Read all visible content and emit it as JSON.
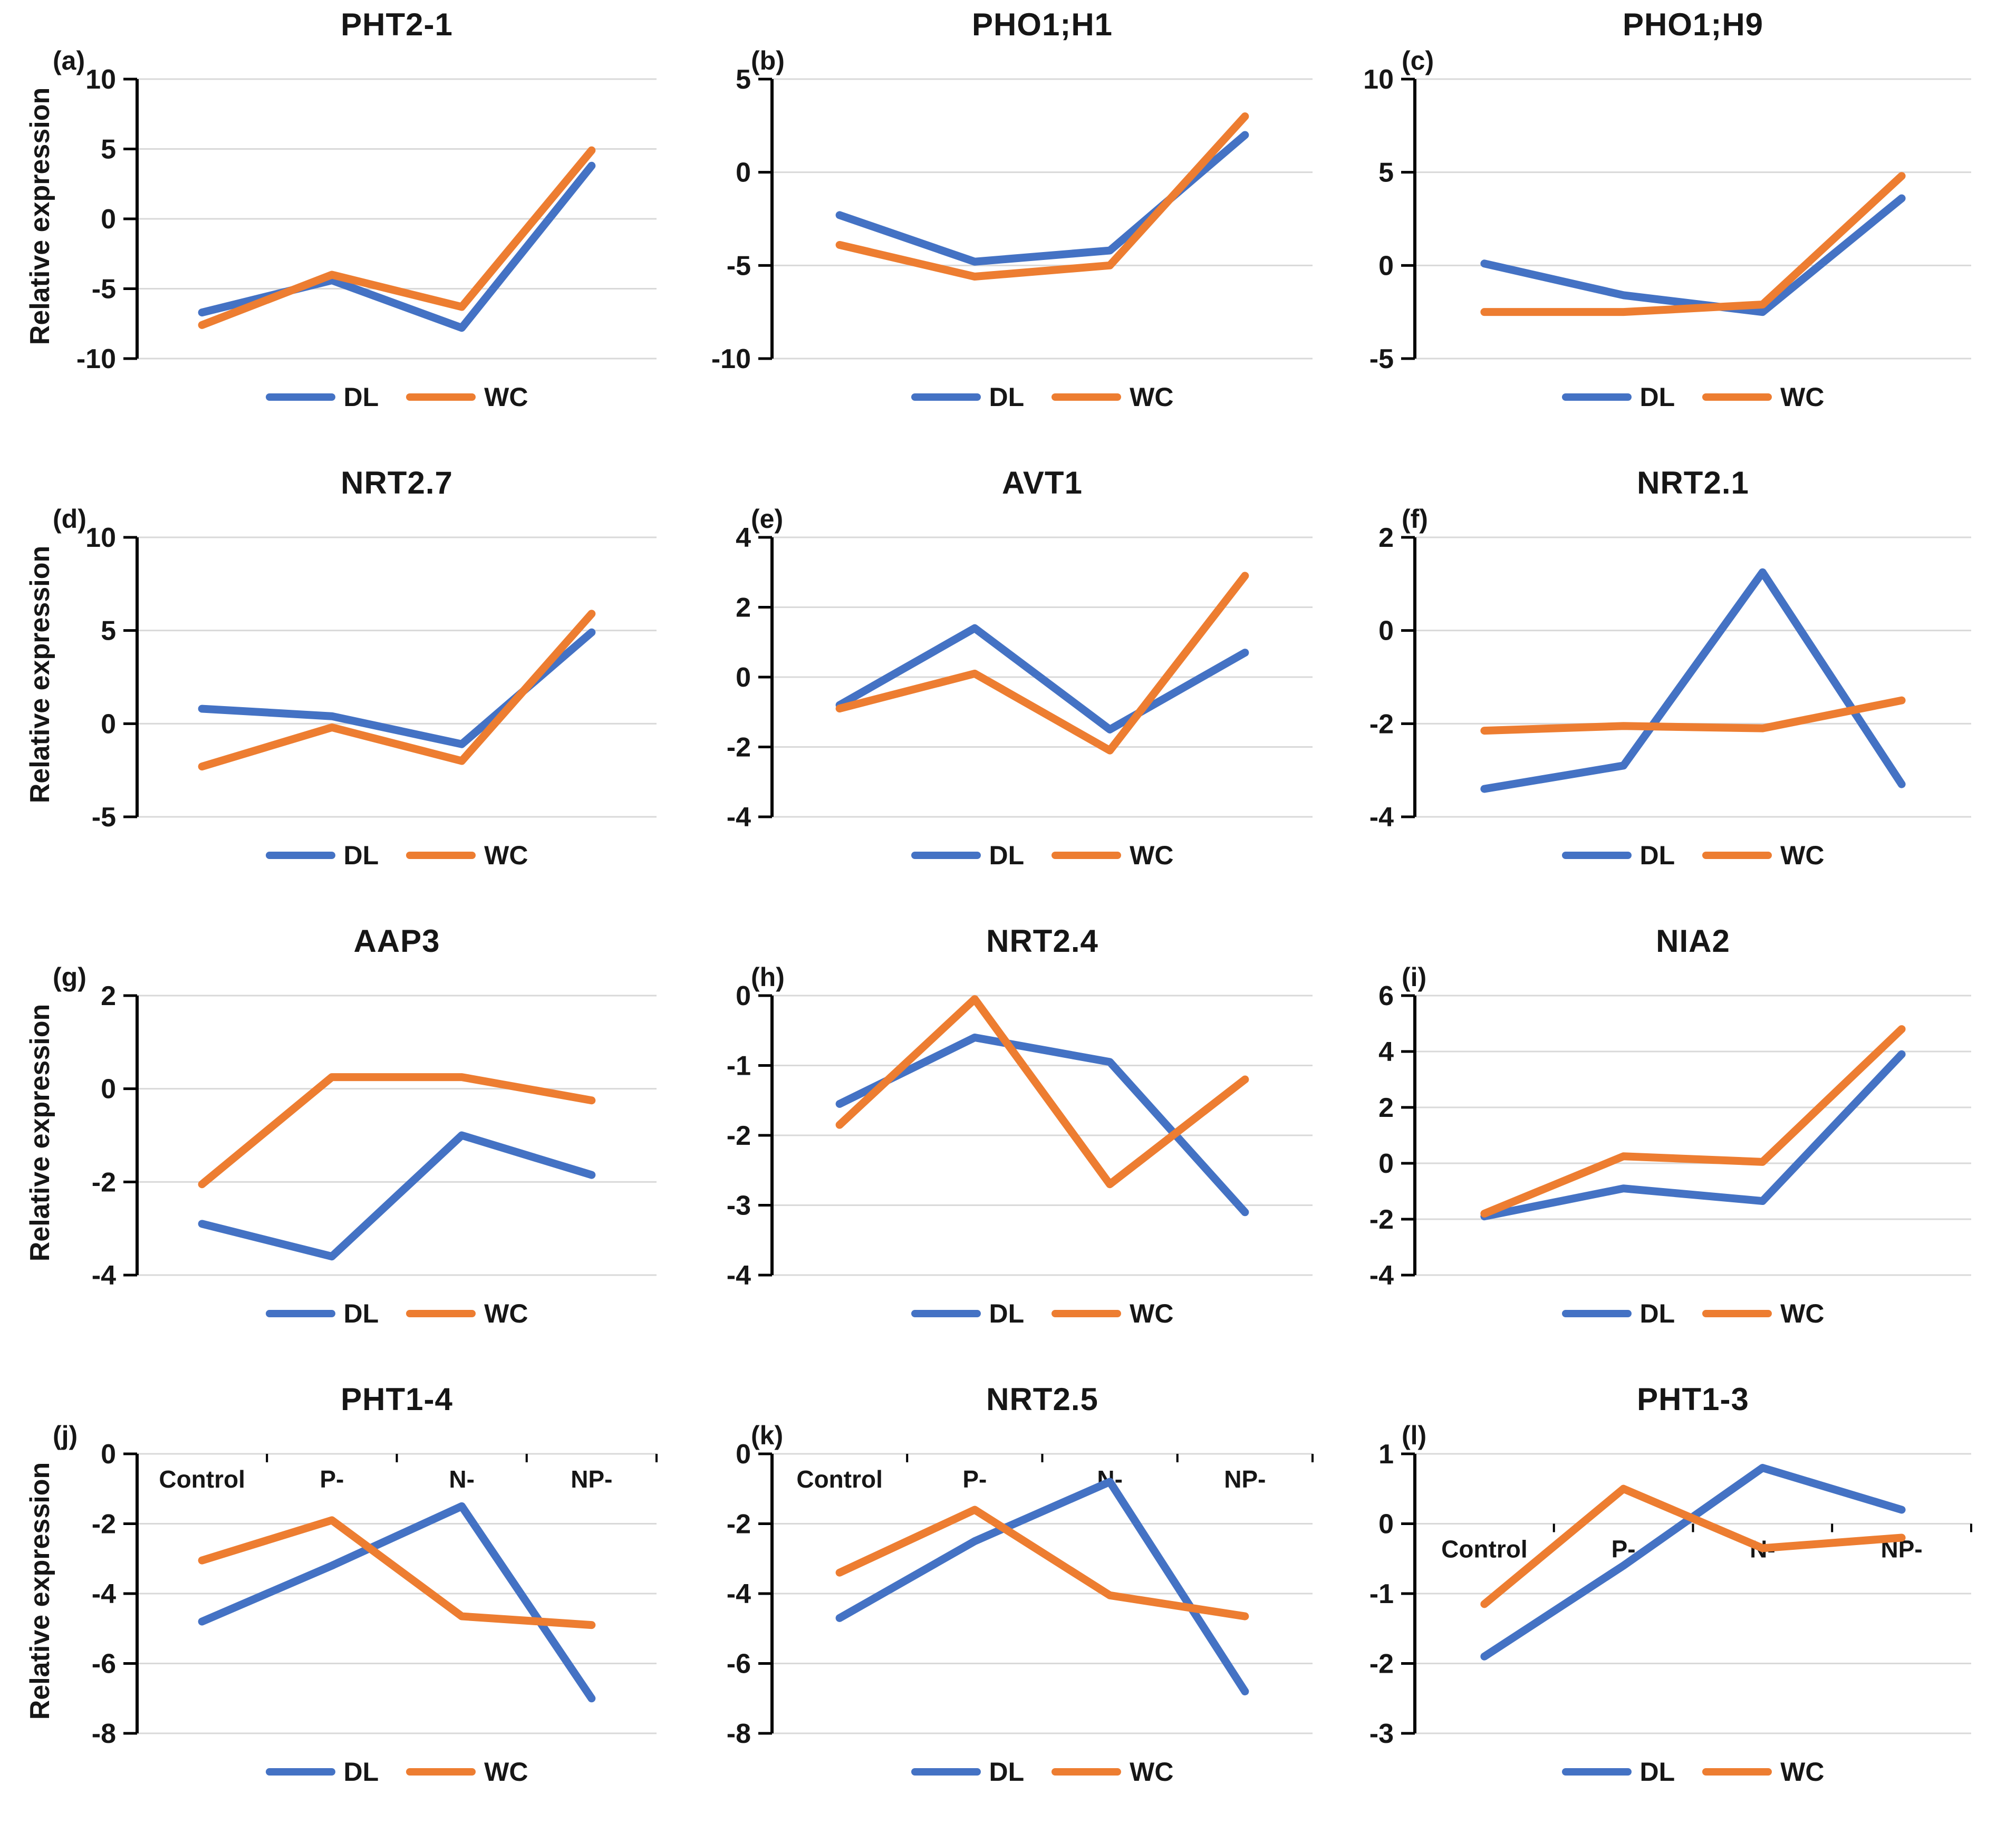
{
  "figure": {
    "ylabel": "Relative expression"
  },
  "categories": [
    "Control",
    "P-",
    "N-",
    "NP-"
  ],
  "colors": {
    "dl": "#4472C4",
    "wc": "#ED7D31",
    "gridline": "#D9D9D9",
    "axis": "#000000"
  },
  "chart_data": [
    {
      "type": "line",
      "panel_label": "(a)",
      "title": "PHT2-1",
      "ylim": [
        -10,
        10
      ],
      "yticks": [
        10,
        5,
        0,
        -5,
        -10
      ],
      "show_x_labels": false,
      "series": [
        {
          "name": "DL",
          "values": [
            -6.7,
            -4.4,
            -7.8,
            3.8
          ]
        },
        {
          "name": "WC",
          "values": [
            -7.6,
            -4.0,
            -6.3,
            4.9
          ]
        }
      ]
    },
    {
      "type": "line",
      "panel_label": "(b)",
      "title": "PHO1;H1",
      "ylim": [
        -10,
        5
      ],
      "yticks": [
        5,
        0,
        -5,
        -10
      ],
      "show_x_labels": false,
      "series": [
        {
          "name": "DL",
          "values": [
            -2.3,
            -4.8,
            -4.2,
            2.0
          ]
        },
        {
          "name": "WC",
          "values": [
            -3.9,
            -5.6,
            -5.0,
            3.0
          ]
        }
      ]
    },
    {
      "type": "line",
      "panel_label": "(c)",
      "title": "PHO1;H9",
      "ylim": [
        -5,
        10
      ],
      "yticks": [
        10,
        5,
        0,
        -5
      ],
      "show_x_labels": false,
      "series": [
        {
          "name": "DL",
          "values": [
            0.1,
            -1.6,
            -2.5,
            3.6
          ]
        },
        {
          "name": "WC",
          "values": [
            -2.5,
            -2.5,
            -2.1,
            4.8
          ]
        }
      ]
    },
    {
      "type": "line",
      "panel_label": "(d)",
      "title": "NRT2.7",
      "ylim": [
        -5,
        10
      ],
      "yticks": [
        10,
        5,
        0,
        -5
      ],
      "show_x_labels": false,
      "series": [
        {
          "name": "DL",
          "values": [
            0.8,
            0.4,
            -1.1,
            4.9
          ]
        },
        {
          "name": "WC",
          "values": [
            -2.3,
            -0.2,
            -2.0,
            5.9
          ]
        }
      ]
    },
    {
      "type": "line",
      "panel_label": "(e)",
      "title": "AVT1",
      "ylim": [
        -4,
        4
      ],
      "yticks": [
        4,
        2,
        0,
        -2,
        -4
      ],
      "show_x_labels": false,
      "series": [
        {
          "name": "DL",
          "values": [
            -0.8,
            1.4,
            -1.5,
            0.7
          ]
        },
        {
          "name": "WC",
          "values": [
            -0.9,
            0.1,
            -2.1,
            2.9
          ]
        }
      ]
    },
    {
      "type": "line",
      "panel_label": "(f)",
      "title": "NRT2.1",
      "ylim": [
        -4,
        2
      ],
      "yticks": [
        2,
        0,
        -2,
        -4
      ],
      "show_x_labels": false,
      "series": [
        {
          "name": "DL",
          "values": [
            -3.4,
            -2.9,
            1.25,
            -3.3
          ]
        },
        {
          "name": "WC",
          "values": [
            -2.15,
            -2.05,
            -2.1,
            -1.5
          ]
        }
      ]
    },
    {
      "type": "line",
      "panel_label": "(g)",
      "title": "AAP3",
      "ylim": [
        -4,
        2
      ],
      "yticks": [
        2,
        0,
        -2,
        -4
      ],
      "show_x_labels": false,
      "series": [
        {
          "name": "DL",
          "values": [
            -2.9,
            -3.6,
            -1.0,
            -1.85
          ]
        },
        {
          "name": "WC",
          "values": [
            -2.05,
            0.25,
            0.25,
            -0.25
          ]
        }
      ]
    },
    {
      "type": "line",
      "panel_label": "(h)",
      "title": "NRT2.4",
      "ylim": [
        -4,
        0
      ],
      "yticks": [
        0,
        -1,
        -2,
        -3,
        -4
      ],
      "show_x_labels": false,
      "series": [
        {
          "name": "DL",
          "values": [
            -1.55,
            -0.6,
            -0.95,
            -3.1
          ]
        },
        {
          "name": "WC",
          "values": [
            -1.85,
            -0.05,
            -2.7,
            -1.2
          ]
        }
      ]
    },
    {
      "type": "line",
      "panel_label": "(i)",
      "title": "NIA2",
      "ylim": [
        -4,
        6
      ],
      "yticks": [
        6,
        4,
        2,
        0,
        -2,
        -4
      ],
      "show_x_labels": false,
      "series": [
        {
          "name": "DL",
          "values": [
            -1.9,
            -0.9,
            -1.35,
            3.9
          ]
        },
        {
          "name": "WC",
          "values": [
            -1.8,
            0.25,
            0.05,
            4.8
          ]
        }
      ]
    },
    {
      "type": "line",
      "panel_label": "(j)",
      "title": "PHT1-4",
      "ylim": [
        -8,
        0
      ],
      "yticks": [
        0,
        -2,
        -4,
        -6,
        -8
      ],
      "show_x_labels": true,
      "series": [
        {
          "name": "DL",
          "values": [
            -4.8,
            -3.2,
            -1.5,
            -7.0
          ]
        },
        {
          "name": "WC",
          "values": [
            -3.05,
            -1.9,
            -4.65,
            -4.9
          ]
        }
      ]
    },
    {
      "type": "line",
      "panel_label": "(k)",
      "title": "NRT2.5",
      "ylim": [
        -8,
        0
      ],
      "yticks": [
        0,
        -2,
        -4,
        -6,
        -8
      ],
      "show_x_labels": true,
      "series": [
        {
          "name": "DL",
          "values": [
            -4.7,
            -2.5,
            -0.8,
            -6.8
          ]
        },
        {
          "name": "WC",
          "values": [
            -3.4,
            -1.6,
            -4.05,
            -4.65
          ]
        }
      ]
    },
    {
      "type": "line",
      "panel_label": "(l)",
      "title": "PHT1-3",
      "ylim": [
        -3,
        1
      ],
      "yticks": [
        1,
        0,
        -1,
        -2,
        -3
      ],
      "show_x_labels": true,
      "series": [
        {
          "name": "DL",
          "values": [
            -1.9,
            -0.6,
            0.8,
            0.2
          ]
        },
        {
          "name": "WC",
          "values": [
            -1.15,
            0.5,
            -0.35,
            -0.2
          ]
        }
      ]
    }
  ]
}
